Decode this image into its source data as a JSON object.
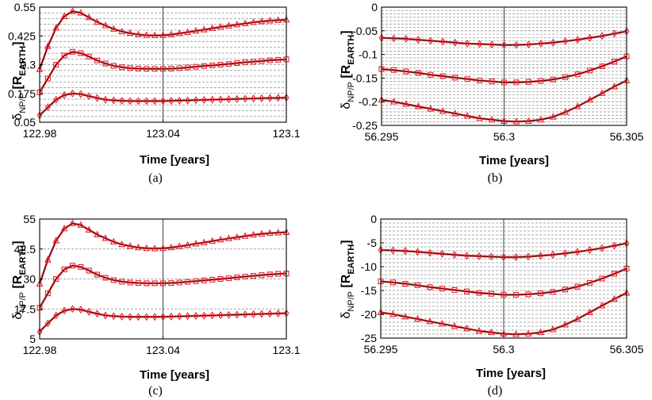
{
  "colors": {
    "series": "#e8202a",
    "trend": "#111111",
    "grid": "#8c8c8c",
    "axis": "#000000"
  },
  "chart_data": [
    {
      "type": "line",
      "panel_label": "(a)",
      "xlabel": "Time [years]",
      "ylabel": {
        "symbol": "δ",
        "subscript": "NP/P",
        "unit_open": " [R",
        "unit_sub": "EARTH",
        "unit_close": "]"
      },
      "xlim": [
        122.98,
        123.1
      ],
      "ylim": [
        0.05,
        0.55
      ],
      "xticks": [
        122.98,
        123.04,
        123.1
      ],
      "xtick_labels": [
        "122.98",
        "123.04",
        "123.1"
      ],
      "yticks": [
        0.05,
        0.175,
        0.3,
        0.425,
        0.55
      ],
      "ytick_labels": [
        "0.05",
        "0.175",
        "0.3",
        "0.425",
        "0.55"
      ],
      "grid": true,
      "series": [
        {
          "name": "triangle",
          "marker": "triangle",
          "x": [
            122.98,
            122.984,
            122.988,
            122.992,
            122.996,
            123.0,
            123.004,
            123.008,
            123.012,
            123.016,
            123.02,
            123.024,
            123.028,
            123.032,
            123.036,
            123.04,
            123.044,
            123.048,
            123.052,
            123.056,
            123.06,
            123.064,
            123.068,
            123.072,
            123.076,
            123.08,
            123.084,
            123.088,
            123.092,
            123.096,
            123.1
          ],
          "y": [
            0.28,
            0.38,
            0.46,
            0.51,
            0.532,
            0.525,
            0.505,
            0.485,
            0.47,
            0.455,
            0.444,
            0.437,
            0.431,
            0.428,
            0.427,
            0.428,
            0.431,
            0.436,
            0.441,
            0.447,
            0.452,
            0.458,
            0.464,
            0.469,
            0.474,
            0.479,
            0.484,
            0.488,
            0.491,
            0.493,
            0.495
          ]
        },
        {
          "name": "square",
          "marker": "square",
          "x": [
            122.98,
            122.984,
            122.988,
            122.992,
            122.996,
            123.0,
            123.004,
            123.008,
            123.012,
            123.016,
            123.02,
            123.024,
            123.028,
            123.032,
            123.036,
            123.04,
            123.044,
            123.048,
            123.052,
            123.056,
            123.06,
            123.064,
            123.068,
            123.072,
            123.076,
            123.08,
            123.084,
            123.088,
            123.092,
            123.096,
            123.1
          ],
          "y": [
            0.18,
            0.24,
            0.3,
            0.34,
            0.356,
            0.35,
            0.335,
            0.318,
            0.305,
            0.295,
            0.289,
            0.285,
            0.283,
            0.282,
            0.282,
            0.282,
            0.283,
            0.285,
            0.288,
            0.291,
            0.294,
            0.297,
            0.3,
            0.303,
            0.307,
            0.31,
            0.313,
            0.316,
            0.319,
            0.321,
            0.323
          ]
        },
        {
          "name": "diamond",
          "marker": "diamond",
          "x": [
            122.98,
            122.984,
            122.988,
            122.992,
            122.996,
            123.0,
            123.004,
            123.008,
            123.012,
            123.016,
            123.02,
            123.024,
            123.028,
            123.032,
            123.036,
            123.04,
            123.044,
            123.048,
            123.052,
            123.056,
            123.06,
            123.064,
            123.068,
            123.072,
            123.076,
            123.08,
            123.084,
            123.088,
            123.092,
            123.096,
            123.1
          ],
          "y": [
            0.08,
            0.115,
            0.148,
            0.168,
            0.175,
            0.172,
            0.163,
            0.155,
            0.148,
            0.145,
            0.143,
            0.142,
            0.142,
            0.142,
            0.142,
            0.142,
            0.143,
            0.144,
            0.145,
            0.146,
            0.147,
            0.148,
            0.149,
            0.15,
            0.151,
            0.152,
            0.153,
            0.154,
            0.155,
            0.156,
            0.157
          ]
        }
      ]
    },
    {
      "type": "line",
      "panel_label": "(b)",
      "xlabel": "Time [years]",
      "ylabel": {
        "symbol": "δ",
        "subscript": "NP/P",
        "unit_open": " [R",
        "unit_sub": "EARTH",
        "unit_close": "]"
      },
      "xlim": [
        56.295,
        56.305
      ],
      "ylim": [
        -0.25,
        0
      ],
      "xticks": [
        56.295,
        56.3,
        56.305
      ],
      "xtick_labels": [
        "56.295",
        "56.3",
        "56.305"
      ],
      "yticks": [
        -0.25,
        -0.2,
        -0.15,
        -0.1,
        -0.05,
        0
      ],
      "ytick_labels": [
        "-0.25",
        "-0.2",
        "-0.15",
        "-0.1",
        "-0.05",
        "0"
      ],
      "grid": true,
      "series": [
        {
          "name": "diamond",
          "marker": "diamond",
          "x": [
            56.295,
            56.2955,
            56.296,
            56.2965,
            56.297,
            56.2975,
            56.298,
            56.2985,
            56.299,
            56.2995,
            56.3,
            56.3005,
            56.301,
            56.3015,
            56.302,
            56.3025,
            56.303,
            56.3035,
            56.304,
            56.3045,
            56.305
          ],
          "y": [
            -0.065,
            -0.066,
            -0.067,
            -0.069,
            -0.071,
            -0.073,
            -0.075,
            -0.077,
            -0.078,
            -0.079,
            -0.08,
            -0.08,
            -0.079,
            -0.077,
            -0.075,
            -0.072,
            -0.069,
            -0.065,
            -0.061,
            -0.056,
            -0.051
          ]
        },
        {
          "name": "square",
          "marker": "square",
          "x": [
            56.295,
            56.2955,
            56.296,
            56.2965,
            56.297,
            56.2975,
            56.298,
            56.2985,
            56.299,
            56.2995,
            56.3,
            56.3005,
            56.301,
            56.3015,
            56.302,
            56.3025,
            56.303,
            56.3035,
            56.304,
            56.3045,
            56.305
          ],
          "y": [
            -0.131,
            -0.133,
            -0.136,
            -0.139,
            -0.143,
            -0.146,
            -0.149,
            -0.152,
            -0.155,
            -0.157,
            -0.159,
            -0.159,
            -0.158,
            -0.156,
            -0.153,
            -0.148,
            -0.142,
            -0.134,
            -0.125,
            -0.115,
            -0.104
          ]
        },
        {
          "name": "triangle",
          "marker": "triangle",
          "x": [
            56.295,
            56.2955,
            56.296,
            56.2965,
            56.297,
            56.2975,
            56.298,
            56.2985,
            56.299,
            56.2995,
            56.3,
            56.3005,
            56.301,
            56.3015,
            56.302,
            56.3025,
            56.303,
            56.3035,
            56.304,
            56.3045,
            56.305
          ],
          "y": [
            -0.196,
            -0.2,
            -0.205,
            -0.21,
            -0.215,
            -0.22,
            -0.225,
            -0.23,
            -0.235,
            -0.238,
            -0.241,
            -0.242,
            -0.241,
            -0.238,
            -0.232,
            -0.222,
            -0.21,
            -0.196,
            -0.182,
            -0.168,
            -0.155
          ]
        }
      ]
    },
    {
      "type": "line",
      "panel_label": "(c)",
      "xlabel": "Time [years]",
      "ylabel": {
        "symbol": "δ",
        "subscript": "NP/P",
        "unit_open": " [R",
        "unit_sub": "EARTH",
        "unit_close": "]"
      },
      "xlim": [
        122.98,
        123.1
      ],
      "ylim": [
        5,
        55
      ],
      "xticks": [
        122.98,
        123.04,
        123.1
      ],
      "xtick_labels": [
        "122.98",
        "123.04",
        "123.1"
      ],
      "yticks": [
        5,
        17.5,
        30,
        42.5,
        55
      ],
      "ytick_labels": [
        "5",
        "17.5",
        "30",
        "42.5",
        "55"
      ],
      "grid": true,
      "series": [
        {
          "name": "triangle",
          "marker": "triangle",
          "x": [
            122.98,
            122.984,
            122.988,
            122.992,
            122.996,
            123.0,
            123.004,
            123.008,
            123.012,
            123.016,
            123.02,
            123.024,
            123.028,
            123.032,
            123.036,
            123.04,
            123.044,
            123.048,
            123.052,
            123.056,
            123.06,
            123.064,
            123.068,
            123.072,
            123.076,
            123.08,
            123.084,
            123.088,
            123.092,
            123.096,
            123.1
          ],
          "y": [
            28,
            38,
            46,
            51,
            53.2,
            52.5,
            50.5,
            48.5,
            47,
            45.5,
            44.4,
            43.7,
            43.1,
            42.8,
            42.7,
            42.8,
            43.1,
            43.6,
            44.1,
            44.7,
            45.2,
            45.8,
            46.4,
            46.9,
            47.4,
            47.9,
            48.4,
            48.8,
            49.1,
            49.3,
            49.5
          ]
        },
        {
          "name": "square",
          "marker": "square",
          "x": [
            122.98,
            122.984,
            122.988,
            122.992,
            122.996,
            123.0,
            123.004,
            123.008,
            123.012,
            123.016,
            123.02,
            123.024,
            123.028,
            123.032,
            123.036,
            123.04,
            123.044,
            123.048,
            123.052,
            123.056,
            123.06,
            123.064,
            123.068,
            123.072,
            123.076,
            123.08,
            123.084,
            123.088,
            123.092,
            123.096,
            123.1
          ],
          "y": [
            18,
            24,
            30,
            34,
            35.6,
            35,
            33.5,
            31.8,
            30.5,
            29.5,
            28.9,
            28.5,
            28.3,
            28.2,
            28.2,
            28.2,
            28.3,
            28.5,
            28.8,
            29.1,
            29.4,
            29.7,
            30,
            30.3,
            30.7,
            31,
            31.3,
            31.6,
            31.9,
            32.1,
            32.3
          ]
        },
        {
          "name": "diamond",
          "marker": "diamond",
          "x": [
            122.98,
            122.984,
            122.988,
            122.992,
            122.996,
            123.0,
            123.004,
            123.008,
            123.012,
            123.016,
            123.02,
            123.024,
            123.028,
            123.032,
            123.036,
            123.04,
            123.044,
            123.048,
            123.052,
            123.056,
            123.06,
            123.064,
            123.068,
            123.072,
            123.076,
            123.08,
            123.084,
            123.088,
            123.092,
            123.096,
            123.1
          ],
          "y": [
            8,
            11.5,
            14.8,
            16.8,
            17.5,
            17.2,
            16.3,
            15.5,
            14.8,
            14.5,
            14.3,
            14.2,
            14.2,
            14.2,
            14.2,
            14.2,
            14.3,
            14.4,
            14.5,
            14.6,
            14.7,
            14.8,
            14.9,
            15,
            15.1,
            15.2,
            15.3,
            15.4,
            15.5,
            15.6,
            15.7
          ]
        }
      ]
    },
    {
      "type": "line",
      "panel_label": "(d)",
      "xlabel": "Time [years]",
      "ylabel": {
        "symbol": "δ",
        "subscript": "NP/P",
        "unit_open": " [R",
        "unit_sub": "EARTH",
        "unit_close": "]"
      },
      "xlim": [
        56.295,
        56.305
      ],
      "ylim": [
        -25,
        0
      ],
      "xticks": [
        56.295,
        56.3,
        56.305
      ],
      "xtick_labels": [
        "56.295",
        "56.3",
        "56.305"
      ],
      "yticks": [
        -25,
        -20,
        -15,
        -10,
        -5,
        0
      ],
      "ytick_labels": [
        "-25",
        "-20",
        "-15",
        "-10",
        "-5",
        "0"
      ],
      "grid": true,
      "series": [
        {
          "name": "diamond",
          "marker": "diamond",
          "x": [
            56.295,
            56.2955,
            56.296,
            56.2965,
            56.297,
            56.2975,
            56.298,
            56.2985,
            56.299,
            56.2995,
            56.3,
            56.3005,
            56.301,
            56.3015,
            56.302,
            56.3025,
            56.303,
            56.3035,
            56.304,
            56.3045,
            56.305
          ],
          "y": [
            -6.5,
            -6.6,
            -6.7,
            -6.9,
            -7.1,
            -7.3,
            -7.5,
            -7.7,
            -7.8,
            -7.9,
            -8,
            -8,
            -7.9,
            -7.7,
            -7.5,
            -7.2,
            -6.9,
            -6.5,
            -6.1,
            -5.6,
            -5.1
          ]
        },
        {
          "name": "square",
          "marker": "square",
          "x": [
            56.295,
            56.2955,
            56.296,
            56.2965,
            56.297,
            56.2975,
            56.298,
            56.2985,
            56.299,
            56.2995,
            56.3,
            56.3005,
            56.301,
            56.3015,
            56.302,
            56.3025,
            56.303,
            56.3035,
            56.304,
            56.3045,
            56.305
          ],
          "y": [
            -13.1,
            -13.3,
            -13.6,
            -13.9,
            -14.3,
            -14.6,
            -14.9,
            -15.2,
            -15.5,
            -15.7,
            -15.9,
            -15.9,
            -15.8,
            -15.6,
            -15.3,
            -14.8,
            -14.2,
            -13.4,
            -12.5,
            -11.5,
            -10.4
          ]
        },
        {
          "name": "triangle",
          "marker": "triangle",
          "x": [
            56.295,
            56.2955,
            56.296,
            56.2965,
            56.297,
            56.2975,
            56.298,
            56.2985,
            56.299,
            56.2995,
            56.3,
            56.3005,
            56.301,
            56.3015,
            56.302,
            56.3025,
            56.303,
            56.3035,
            56.304,
            56.3045,
            56.305
          ],
          "y": [
            -19.6,
            -20,
            -20.5,
            -21,
            -21.5,
            -22,
            -22.5,
            -23,
            -23.5,
            -23.8,
            -24.1,
            -24.2,
            -24.1,
            -23.8,
            -23.2,
            -22.2,
            -21,
            -19.6,
            -18.2,
            -16.8,
            -15.5
          ]
        }
      ]
    }
  ]
}
